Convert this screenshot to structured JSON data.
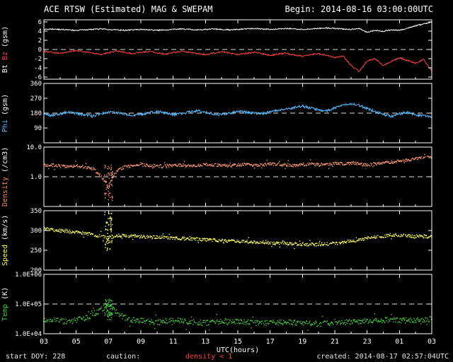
{
  "header": {
    "title": "ACE RTSW (Estimated) MAG & SWEPAM",
    "begin": "Begin: 2014-08-16 03:00:00UTC"
  },
  "footer": {
    "start_doy": "start DOY: 228",
    "caution_label": "caution:",
    "caution_value": "density < 1",
    "created": "created: 2014-08-17 02:57:04UTC"
  },
  "x_axis": {
    "label": "UTC(hours)",
    "start_hour": 3,
    "span_hours": 24,
    "tick_step_hours": 2,
    "tick_labels": [
      "03",
      "05",
      "07",
      "09",
      "11",
      "13",
      "15",
      "17",
      "19",
      "21",
      "23",
      "01",
      "03"
    ]
  },
  "chart_data": [
    {
      "id": "bt_bz",
      "type": "line",
      "yscale": "linear",
      "ylim": [
        -6.5,
        6.5
      ],
      "ytick_values": [
        6,
        4,
        2,
        0,
        -2,
        -4,
        -6
      ],
      "ytick_labels": [
        "6",
        "4",
        "2",
        "0",
        "-2",
        "-4",
        "-6"
      ],
      "ref_lines": [
        0
      ],
      "sample_step_hours": 0.5,
      "ylabel_parts": [
        {
          "text": "Bt",
          "color": "#ffffff"
        },
        {
          "text": "Bz",
          "color": "#ff4040"
        },
        {
          "text": "(gsm)",
          "color": "#ffffff"
        }
      ],
      "series": [
        {
          "name": "Bt",
          "color": "#ffffff",
          "jitter": 0.12,
          "values": [
            4.4,
            4.5,
            4.4,
            4.3,
            4.2,
            4.3,
            4.4,
            4.5,
            4.4,
            4.3,
            4.2,
            4.3,
            4.4,
            4.3,
            4.2,
            4.3,
            4.4,
            4.5,
            4.4,
            4.3,
            4.4,
            4.5,
            4.4,
            4.3,
            4.4,
            4.5,
            4.6,
            4.5,
            4.4,
            4.5,
            4.6,
            4.5,
            4.4,
            4.5,
            4.6,
            4.7,
            4.6,
            4.5,
            4.4,
            4.6,
            3.8,
            4.2,
            4.0,
            4.3,
            4.2,
            4.6,
            5.2,
            5.6,
            6.0
          ]
        },
        {
          "name": "Bz",
          "color": "#ff4040",
          "jitter": 0.15,
          "values": [
            -0.4,
            -0.6,
            -0.9,
            -0.5,
            -0.2,
            -0.5,
            -0.8,
            -1.1,
            -0.7,
            -0.3,
            -0.6,
            -0.9,
            -0.6,
            -0.4,
            -0.7,
            -1.0,
            -0.7,
            -0.4,
            -0.6,
            -0.9,
            -1.1,
            -0.8,
            -0.5,
            -0.8,
            -1.1,
            -0.9,
            -0.6,
            -0.9,
            -1.3,
            -1.0,
            -0.8,
            -1.2,
            -1.5,
            -1.1,
            -0.9,
            -1.3,
            -1.8,
            -1.4,
            -3.5,
            -4.8,
            -2.5,
            -2.0,
            -3.5,
            -2.6,
            -1.8,
            -2.4,
            -3.0,
            -2.2,
            -4.6
          ]
        }
      ],
      "spikes": []
    },
    {
      "id": "phi",
      "type": "line",
      "yscale": "linear",
      "ylim": [
        0,
        360
      ],
      "ytick_values": [
        360,
        270,
        180,
        90
      ],
      "ytick_labels": [
        "360",
        "270",
        "180",
        "90"
      ],
      "ref_lines": [
        180
      ],
      "sample_step_hours": 0.5,
      "ylabel_parts": [
        {
          "text": "Phi",
          "color": "#55bbff"
        },
        {
          "text": "(gsm)",
          "color": "#ffffff"
        }
      ],
      "series": [
        {
          "name": "Phi",
          "color": "#55bbff",
          "jitter": 8,
          "values": [
            172,
            166,
            176,
            186,
            180,
            170,
            162,
            174,
            188,
            184,
            174,
            166,
            172,
            182,
            190,
            182,
            172,
            176,
            186,
            194,
            186,
            176,
            170,
            180,
            190,
            186,
            180,
            176,
            186,
            196,
            206,
            214,
            222,
            212,
            200,
            192,
            210,
            228,
            238,
            226,
            208,
            190,
            172,
            162,
            176,
            184,
            170,
            162,
            156
          ]
        }
      ],
      "spikes": []
    },
    {
      "id": "density",
      "type": "scatter",
      "yscale": "log",
      "ylim": [
        0.1,
        10
      ],
      "ytick_values": [
        10,
        1
      ],
      "ytick_labels": [
        "10.0",
        "1.0"
      ],
      "ref_lines": [
        1
      ],
      "sample_step_hours": 0.5,
      "ylabel_parts": [
        {
          "text": "Density",
          "color": "#ff8855"
        },
        {
          "text": "(/cm3)",
          "color": "#ffffff"
        }
      ],
      "series": [
        {
          "name": "Density",
          "color": "#ff9977",
          "jitter": 0.05,
          "values": [
            2.5,
            2.6,
            2.4,
            2.3,
            2.5,
            2.2,
            2.0,
            1.1,
            0.4,
            1.6,
            2.2,
            2.4,
            2.6,
            2.5,
            2.4,
            2.3,
            2.5,
            2.6,
            2.4,
            2.5,
            2.7,
            2.6,
            2.5,
            2.4,
            2.6,
            2.7,
            2.5,
            2.6,
            2.8,
            2.7,
            2.6,
            2.5,
            2.7,
            2.8,
            2.6,
            2.7,
            2.9,
            2.8,
            3.0,
            2.8,
            2.6,
            2.8,
            3.0,
            3.2,
            3.5,
            3.8,
            4.2,
            4.5,
            4.8
          ]
        }
      ],
      "spikes": [
        {
          "hour": 7.0,
          "half_width": 0.25,
          "range": [
            0.15,
            2.6
          ],
          "count": 60
        }
      ]
    },
    {
      "id": "speed",
      "type": "scatter",
      "yscale": "linear",
      "ylim": [
        200,
        350
      ],
      "ytick_values": [
        350,
        300,
        250,
        200
      ],
      "ytick_labels": [
        "350",
        "300",
        "250",
        "200"
      ],
      "ref_lines": [],
      "sample_step_hours": 0.5,
      "ylabel_parts": [
        {
          "text": "Speed",
          "color": "#ffff55"
        },
        {
          "text": "(km/s)",
          "color": "#ffffff"
        }
      ],
      "series": [
        {
          "name": "Speed",
          "color": "#ffff66",
          "jitter": 4,
          "values": [
            305,
            303,
            301,
            299,
            297,
            294,
            291,
            287,
            283,
            289,
            288,
            287,
            286,
            285,
            284,
            283,
            282,
            281,
            280,
            279,
            278,
            277,
            276,
            275,
            274,
            273,
            272,
            271,
            270,
            269,
            268,
            267,
            267,
            266,
            266,
            267,
            269,
            271,
            274,
            277,
            281,
            284,
            287,
            290,
            289,
            288,
            287,
            286,
            285
          ]
        }
      ],
      "spikes": [
        {
          "hour": 7.0,
          "half_width": 0.25,
          "range": [
            248,
            348
          ],
          "count": 60
        }
      ]
    },
    {
      "id": "temp",
      "type": "scatter",
      "yscale": "log",
      "ylim": [
        10000,
        1000000
      ],
      "ytick_values": [
        1000000,
        100000,
        10000
      ],
      "ytick_labels": [
        "1.0E+06",
        "1.0E+05",
        "1.0E+04"
      ],
      "ref_lines": [
        100000
      ],
      "sample_step_hours": 0.5,
      "ylabel_parts": [
        {
          "text": "Temp",
          "color": "#44cc44"
        },
        {
          "text": "(K)",
          "color": "#ffffff"
        }
      ],
      "series": [
        {
          "name": "Temp",
          "color": "#44cc44",
          "jitter": 0.09,
          "values": [
            30000,
            32000,
            28000,
            26000,
            30000,
            34000,
            42000,
            65000,
            95000,
            52000,
            36000,
            30000,
            28000,
            26000,
            25000,
            27000,
            29000,
            28000,
            26000,
            25000,
            24000,
            25000,
            26000,
            27000,
            26000,
            25000,
            24000,
            23000,
            24000,
            25000,
            26000,
            25000,
            24000,
            23000,
            22000,
            23000,
            24000,
            25000,
            26000,
            27000,
            28000,
            29000,
            30000,
            31000,
            30000,
            29000,
            30000,
            31000,
            32000
          ]
        }
      ],
      "spikes": [
        {
          "hour": 7.0,
          "half_width": 0.25,
          "range": [
            30000,
            160000
          ],
          "count": 60
        }
      ]
    }
  ]
}
